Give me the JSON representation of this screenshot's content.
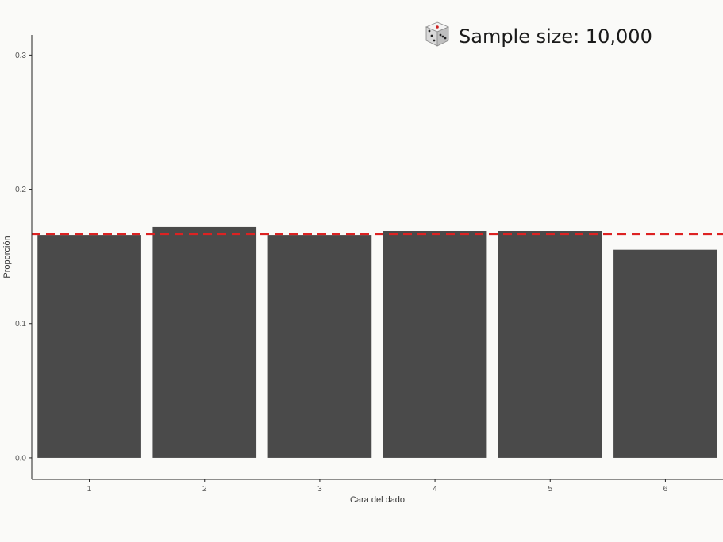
{
  "banner": {
    "icon": "dice-icon",
    "text": "Sample size: 10,000"
  },
  "colors": {
    "bar": "#4a4a4a",
    "reference_line": "#dd2222",
    "axis": "#222222",
    "background": "#fafaf8"
  },
  "chart_data": {
    "type": "bar",
    "title": "",
    "xlabel": "Cara del dado",
    "ylabel": "Proporción",
    "categories": [
      "1",
      "2",
      "3",
      "4",
      "5",
      "6"
    ],
    "values": [
      0.166,
      0.172,
      0.166,
      0.169,
      0.169,
      0.155
    ],
    "ylim": [
      -0.016,
      0.315
    ],
    "yticks": [
      0.0,
      0.1,
      0.2,
      0.3
    ],
    "ytick_labels": [
      "0.0",
      "0.1",
      "0.2",
      "0.3"
    ],
    "reference_line": {
      "y": 0.1667,
      "style": "dashed"
    },
    "grid": false,
    "legend": "none"
  }
}
